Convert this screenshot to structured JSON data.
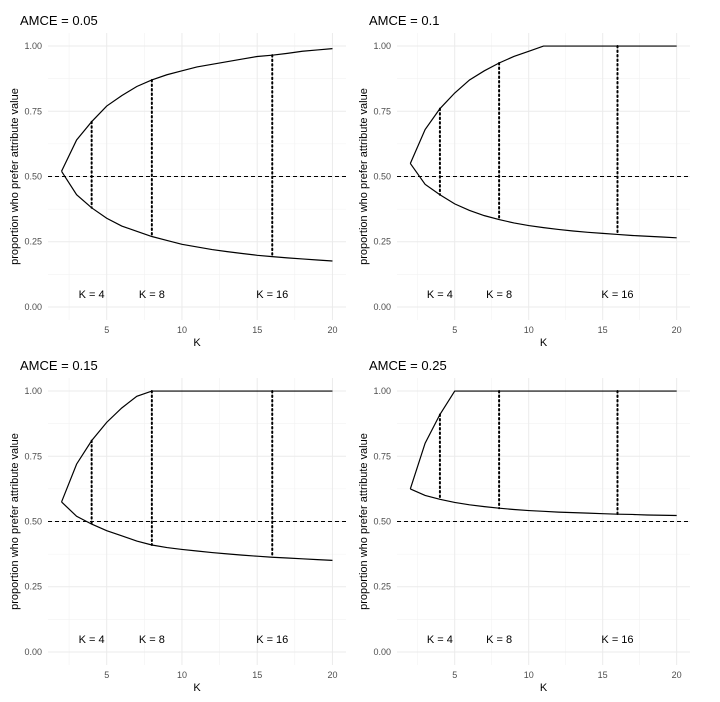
{
  "chart_data": [
    {
      "type": "line",
      "title": "AMCE = 0.05",
      "xlabel": "K",
      "ylabel": "proportion who prefer attribute value",
      "xlim": [
        1.1,
        20.9
      ],
      "ylim": [
        0,
        1.0
      ],
      "x_ticks": [
        5,
        10,
        15,
        20
      ],
      "y_ticks": [
        0.0,
        0.25,
        0.5,
        0.75,
        1.0
      ],
      "y_tick_labels": [
        "0.00",
        "0.25",
        "0.50",
        "0.75",
        "1.00"
      ],
      "grid": true,
      "hline": 0.5,
      "vlines": [
        4,
        8,
        16
      ],
      "annotations": [
        {
          "text": "K = 4",
          "x": 4,
          "y": 0.05
        },
        {
          "text": "K = 8",
          "x": 8,
          "y": 0.05
        },
        {
          "text": "K = 16",
          "x": 16,
          "y": 0.05
        }
      ],
      "series": [
        {
          "x": [
            2,
            3,
            4,
            5,
            6,
            7,
            8,
            9,
            10,
            11,
            12,
            13,
            14,
            15,
            16,
            17,
            18,
            19,
            20
          ],
          "values": [
            0.52,
            0.64,
            0.71,
            0.77,
            0.81,
            0.845,
            0.87,
            0.89,
            0.905,
            0.92,
            0.93,
            0.94,
            0.95,
            0.96,
            0.965,
            0.972,
            0.98,
            0.985,
            0.99
          ]
        },
        {
          "x": [
            2,
            3,
            4,
            5,
            6,
            7,
            8,
            9,
            10,
            11,
            12,
            13,
            14,
            15,
            16,
            17,
            18,
            19,
            20
          ],
          "values": [
            0.52,
            0.43,
            0.38,
            0.34,
            0.31,
            0.29,
            0.27,
            0.255,
            0.24,
            0.23,
            0.22,
            0.212,
            0.205,
            0.198,
            0.193,
            0.188,
            0.184,
            0.18,
            0.176
          ]
        }
      ]
    },
    {
      "type": "line",
      "title": "AMCE = 0.1",
      "xlabel": "K",
      "ylabel": "proportion who prefer attribute value",
      "xlim": [
        1.1,
        20.9
      ],
      "ylim": [
        0,
        1.0
      ],
      "x_ticks": [
        5,
        10,
        15,
        20
      ],
      "y_ticks": [
        0.0,
        0.25,
        0.5,
        0.75,
        1.0
      ],
      "y_tick_labels": [
        "0.00",
        "0.25",
        "0.50",
        "0.75",
        "1.00"
      ],
      "grid": true,
      "hline": 0.5,
      "vlines": [
        4,
        8,
        16
      ],
      "annotations": [
        {
          "text": "K = 4",
          "x": 4,
          "y": 0.05
        },
        {
          "text": "K = 8",
          "x": 8,
          "y": 0.05
        },
        {
          "text": "K = 16",
          "x": 16,
          "y": 0.05
        }
      ],
      "series": [
        {
          "x": [
            2,
            3,
            4,
            5,
            6,
            7,
            8,
            9,
            10,
            11,
            12,
            13,
            14,
            15,
            16,
            17,
            18,
            19,
            20
          ],
          "values": [
            0.55,
            0.68,
            0.76,
            0.82,
            0.87,
            0.905,
            0.935,
            0.96,
            0.98,
            1.0,
            1.0,
            1.0,
            1.0,
            1.0,
            1.0,
            1.0,
            1.0,
            1.0,
            1.0
          ]
        },
        {
          "x": [
            2,
            3,
            4,
            5,
            6,
            7,
            8,
            9,
            10,
            11,
            12,
            13,
            14,
            15,
            16,
            17,
            18,
            19,
            20
          ],
          "values": [
            0.55,
            0.47,
            0.43,
            0.395,
            0.37,
            0.35,
            0.335,
            0.322,
            0.312,
            0.304,
            0.297,
            0.291,
            0.286,
            0.282,
            0.278,
            0.274,
            0.271,
            0.268,
            0.265
          ]
        }
      ]
    },
    {
      "type": "line",
      "title": "AMCE = 0.15",
      "xlabel": "K",
      "ylabel": "proportion who prefer attribute value",
      "xlim": [
        1.1,
        20.9
      ],
      "ylim": [
        0,
        1.0
      ],
      "x_ticks": [
        5,
        10,
        15,
        20
      ],
      "y_ticks": [
        0.0,
        0.25,
        0.5,
        0.75,
        1.0
      ],
      "y_tick_labels": [
        "0.00",
        "0.25",
        "0.50",
        "0.75",
        "1.00"
      ],
      "grid": true,
      "hline": 0.5,
      "vlines": [
        4,
        8,
        16
      ],
      "annotations": [
        {
          "text": "K = 4",
          "x": 4,
          "y": 0.05
        },
        {
          "text": "K = 8",
          "x": 8,
          "y": 0.05
        },
        {
          "text": "K = 16",
          "x": 16,
          "y": 0.05
        }
      ],
      "series": [
        {
          "x": [
            2,
            3,
            4,
            5,
            6,
            7,
            8,
            9,
            10,
            11,
            12,
            13,
            14,
            15,
            16,
            17,
            18,
            19,
            20
          ],
          "values": [
            0.575,
            0.72,
            0.81,
            0.88,
            0.935,
            0.98,
            1.0,
            1.0,
            1.0,
            1.0,
            1.0,
            1.0,
            1.0,
            1.0,
            1.0,
            1.0,
            1.0,
            1.0,
            1.0
          ]
        },
        {
          "x": [
            2,
            3,
            4,
            5,
            6,
            7,
            8,
            9,
            10,
            11,
            12,
            13,
            14,
            15,
            16,
            17,
            18,
            19,
            20
          ],
          "values": [
            0.575,
            0.52,
            0.49,
            0.465,
            0.445,
            0.425,
            0.41,
            0.4,
            0.393,
            0.387,
            0.381,
            0.376,
            0.371,
            0.367,
            0.363,
            0.36,
            0.357,
            0.354,
            0.351
          ]
        }
      ]
    },
    {
      "type": "line",
      "title": "AMCE = 0.25",
      "xlabel": "K",
      "ylabel": "proportion who prefer attribute value",
      "xlim": [
        1.1,
        20.9
      ],
      "ylim": [
        0,
        1.0
      ],
      "x_ticks": [
        5,
        10,
        15,
        20
      ],
      "y_ticks": [
        0.0,
        0.25,
        0.5,
        0.75,
        1.0
      ],
      "y_tick_labels": [
        "0.00",
        "0.25",
        "0.50",
        "0.75",
        "1.00"
      ],
      "grid": true,
      "hline": 0.5,
      "vlines": [
        4,
        8,
        16
      ],
      "annotations": [
        {
          "text": "K = 4",
          "x": 4,
          "y": 0.05
        },
        {
          "text": "K = 8",
          "x": 8,
          "y": 0.05
        },
        {
          "text": "K = 16",
          "x": 16,
          "y": 0.05
        }
      ],
      "series": [
        {
          "x": [
            2,
            3,
            4,
            5,
            6,
            7,
            8,
            9,
            10,
            11,
            12,
            13,
            14,
            15,
            16,
            17,
            18,
            19,
            20
          ],
          "values": [
            0.625,
            0.8,
            0.91,
            1.0,
            1.0,
            1.0,
            1.0,
            1.0,
            1.0,
            1.0,
            1.0,
            1.0,
            1.0,
            1.0,
            1.0,
            1.0,
            1.0,
            1.0,
            1.0
          ]
        },
        {
          "x": [
            2,
            3,
            4,
            5,
            6,
            7,
            8,
            9,
            10,
            11,
            12,
            13,
            14,
            15,
            16,
            17,
            18,
            19,
            20
          ],
          "values": [
            0.625,
            0.6,
            0.585,
            0.573,
            0.564,
            0.557,
            0.551,
            0.546,
            0.542,
            0.539,
            0.536,
            0.534,
            0.532,
            0.53,
            0.528,
            0.527,
            0.525,
            0.524,
            0.523
          ]
        }
      ]
    }
  ]
}
